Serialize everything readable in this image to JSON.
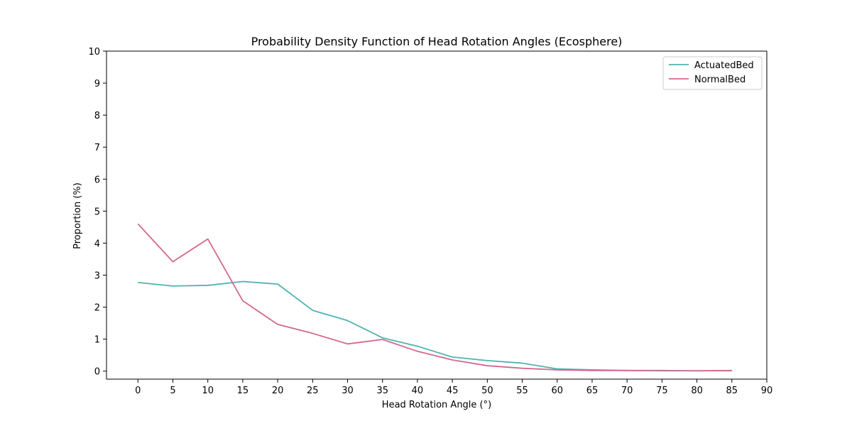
{
  "chart_data": {
    "type": "line",
    "title": "Probability Density Function of Head Rotation Angles (Ecosphere)",
    "xlabel": "Head Rotation Angle (°)",
    "ylabel": "Proportion (%)",
    "xlim": [
      -4.5,
      90
    ],
    "ylim": [
      -0.25,
      10
    ],
    "xticks": [
      "0",
      "5",
      "10",
      "15",
      "20",
      "25",
      "30",
      "35",
      "40",
      "45",
      "50",
      "55",
      "60",
      "65",
      "70",
      "75",
      "80",
      "85",
      "90"
    ],
    "yticks": [
      "0",
      "1",
      "2",
      "3",
      "4",
      "5",
      "6",
      "7",
      "8",
      "9",
      "10"
    ],
    "grid": false,
    "legend_position": "top-right",
    "x": [
      0,
      5,
      10,
      15,
      20,
      25,
      30,
      35,
      40,
      45,
      50,
      55,
      60,
      65,
      70,
      75,
      80,
      85
    ],
    "series": [
      {
        "name": "ActuatedBed",
        "color": "#4fb3b0",
        "values": [
          2.77,
          2.66,
          2.68,
          2.8,
          2.72,
          1.9,
          1.58,
          1.04,
          0.78,
          0.44,
          0.33,
          0.25,
          0.07,
          0.04,
          0.02,
          0.02,
          0.01,
          0.01
        ]
      },
      {
        "name": "NormalBed",
        "color": "#d4688f",
        "values": [
          4.6,
          3.42,
          4.13,
          2.2,
          1.46,
          1.18,
          0.85,
          0.99,
          0.62,
          0.35,
          0.17,
          0.09,
          0.04,
          0.02,
          0.02,
          0.01,
          0.01,
          0.02
        ]
      }
    ]
  }
}
